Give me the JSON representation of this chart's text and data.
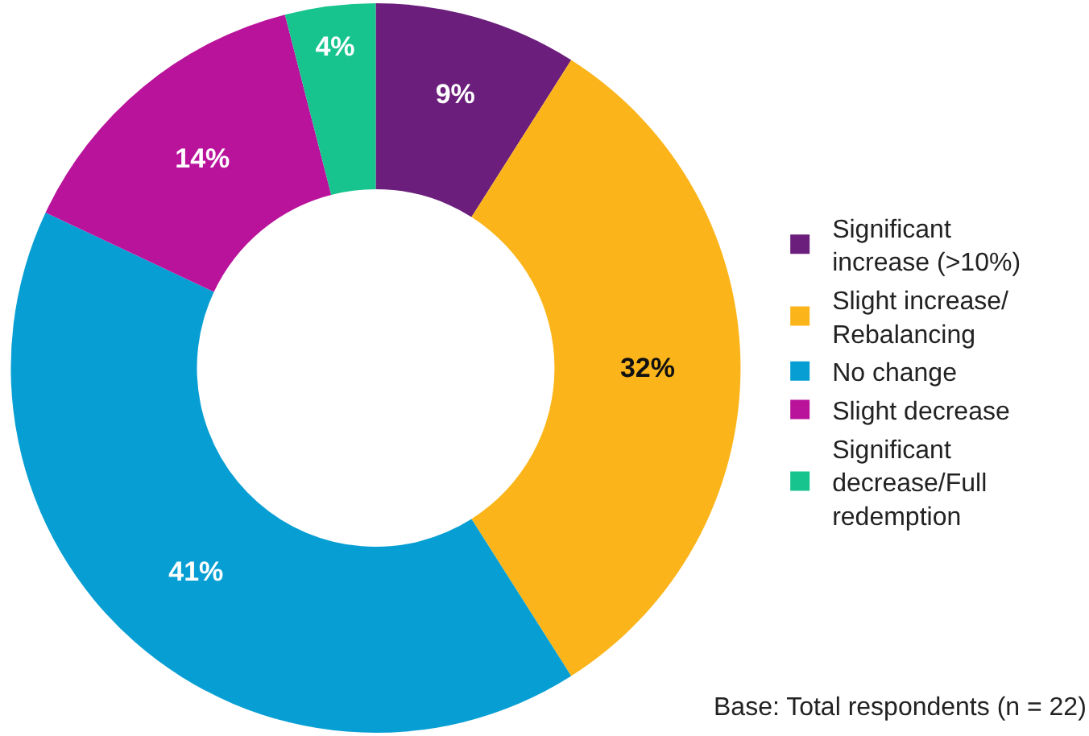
{
  "chart_data": {
    "type": "donut",
    "categories": [
      "Significant increase (>10%)",
      "Slight increase/Rebalancing",
      "No change",
      "Slight decrease",
      "Significant decrease/Full redemption"
    ],
    "values": [
      9,
      32,
      41,
      14,
      4
    ],
    "value_labels": [
      "9%",
      "32%",
      "41%",
      "14%",
      "4%"
    ],
    "colors": [
      "#6b1e7b",
      "#fbb51b",
      "#079fd3",
      "#b9139c",
      "#17c48d"
    ],
    "legend": "right",
    "annotations": [
      "Base: Total respondents (n = 22)"
    ]
  }
}
